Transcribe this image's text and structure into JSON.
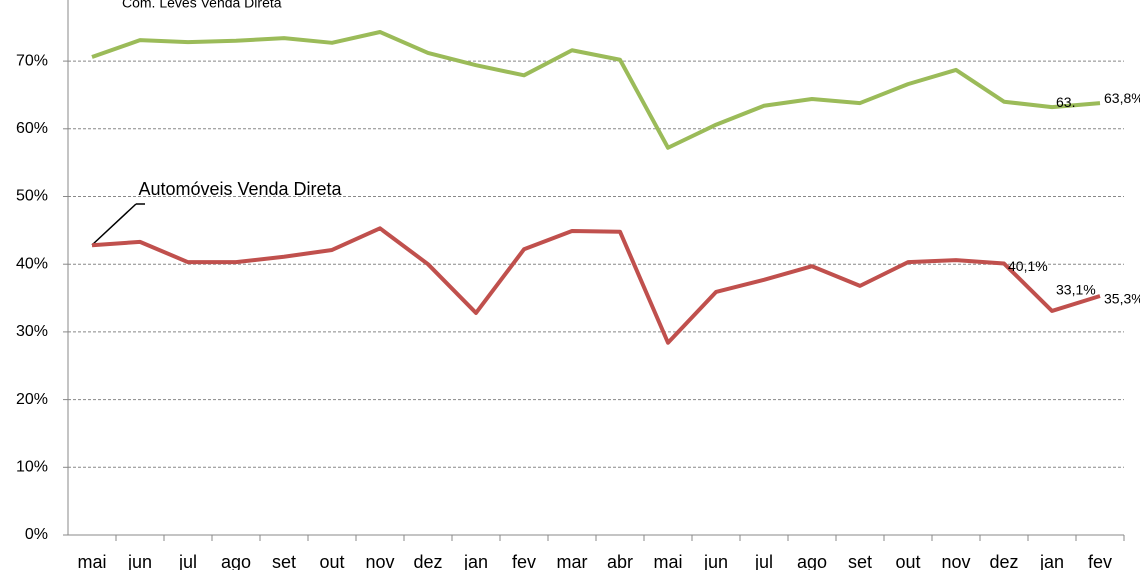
{
  "chart_data": {
    "type": "line",
    "categories": [
      "mai",
      "jun",
      "jul",
      "ago",
      "set",
      "out",
      "nov",
      "dez",
      "jan",
      "fev",
      "mar",
      "abr",
      "mai",
      "jun",
      "jul",
      "ago",
      "set",
      "out",
      "nov",
      "dez",
      "jan",
      "fev"
    ],
    "series": [
      {
        "name": "Com. Leves Venda Direta",
        "color": "#9bbb59",
        "values": [
          70.6,
          73.1,
          72.8,
          73.0,
          73.4,
          72.7,
          74.3,
          71.2,
          69.4,
          67.9,
          71.6,
          70.2,
          57.2,
          60.6,
          63.4,
          64.4,
          63.8,
          66.6,
          68.7,
          64.0,
          63.2,
          63.8
        ],
        "value_labels": [
          null,
          null,
          null,
          null,
          null,
          null,
          null,
          null,
          null,
          null,
          null,
          null,
          null,
          null,
          null,
          null,
          null,
          null,
          null,
          null,
          "63.",
          "63,8%"
        ]
      },
      {
        "name": "Automóveis Venda Direta",
        "color": "#c0504d",
        "values": [
          42.8,
          43.3,
          40.3,
          40.3,
          41.1,
          42.1,
          45.3,
          40.0,
          32.8,
          42.2,
          44.9,
          44.8,
          28.4,
          35.9,
          37.7,
          39.7,
          36.8,
          40.3,
          40.6,
          40.1,
          33.1,
          35.3
        ],
        "value_labels": [
          null,
          null,
          null,
          null,
          null,
          null,
          null,
          null,
          null,
          null,
          null,
          null,
          null,
          null,
          null,
          null,
          null,
          null,
          null,
          "40,1%",
          "33,1%",
          "35,3%"
        ]
      }
    ],
    "ylim": [
      0,
      79
    ],
    "yticks": [
      {
        "value": 0,
        "label": "0%"
      },
      {
        "value": 10,
        "label": "10%"
      },
      {
        "value": 20,
        "label": "20%"
      },
      {
        "value": 30,
        "label": "30%"
      },
      {
        "value": 40,
        "label": "40%"
      },
      {
        "value": 50,
        "label": "50%"
      },
      {
        "value": 60,
        "label": "60%"
      },
      {
        "value": 70,
        "label": "70%"
      }
    ],
    "grid": true
  }
}
